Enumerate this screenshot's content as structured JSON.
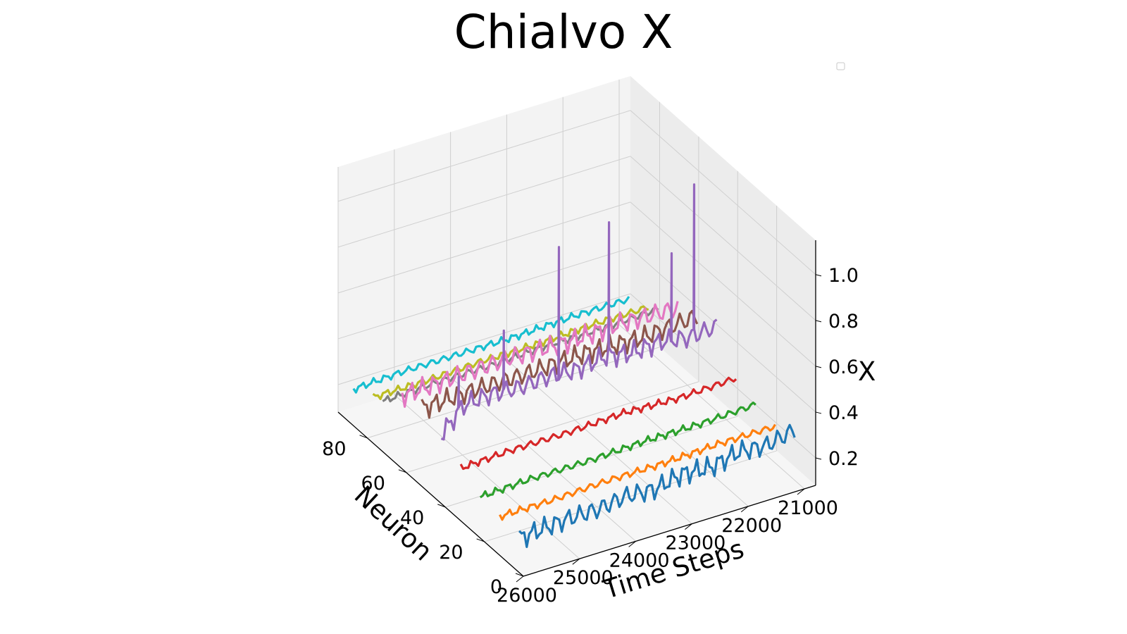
{
  "chart_data": {
    "type": "line",
    "projection": "3d",
    "title": "Chialvo X",
    "xlabel": "Time Steps",
    "ylabel": "Neuron",
    "zlabel": "X",
    "xlim": [
      26000,
      20800
    ],
    "ylim": [
      0,
      95
    ],
    "zlim": [
      0.08,
      1.15
    ],
    "x_ticks": [
      "26000",
      "25000",
      "24000",
      "23000",
      "22000",
      "21000"
    ],
    "y_ticks": [
      "0",
      "20",
      "40",
      "60",
      "80"
    ],
    "z_ticks": [
      "0.2",
      "0.4",
      "0.6",
      "0.8",
      "1.0"
    ],
    "legend": "top-right (empty)",
    "grid": true,
    "series": [
      {
        "neuron": 5,
        "color": "#1f77b4",
        "x": [
          21000,
          21500,
          22000,
          22500,
          23000,
          23500,
          24000,
          24500,
          25000,
          25500,
          25900
        ],
        "y": [
          0.3,
          0.27,
          0.28,
          0.25,
          0.26,
          0.23,
          0.24,
          0.22,
          0.22,
          0.21,
          0.2
        ]
      },
      {
        "neuron": 15,
        "color": "#ff7f0e",
        "x": [
          21000,
          22000,
          23000,
          24000,
          25000,
          25900
        ],
        "y": [
          0.24,
          0.24,
          0.23,
          0.23,
          0.22,
          0.22
        ]
      },
      {
        "neuron": 25,
        "color": "#2ca02c",
        "x": [
          21000,
          22000,
          23000,
          24000,
          25000,
          25900
        ],
        "y": [
          0.26,
          0.25,
          0.25,
          0.24,
          0.24,
          0.23
        ]
      },
      {
        "neuron": 35,
        "color": "#d62728",
        "x": [
          21000,
          22000,
          23000,
          24000,
          25000,
          25900
        ],
        "y": [
          0.3,
          0.29,
          0.3,
          0.29,
          0.29,
          0.28
        ]
      },
      {
        "neuron": 45,
        "color": "#9467bd",
        "x": [
          21000,
          21500,
          22000,
          22500,
          23000,
          23500,
          24000,
          24500,
          25000,
          25500,
          25900
        ],
        "y": [
          0.45,
          0.44,
          0.46,
          0.45,
          0.47,
          0.45,
          0.46,
          0.45,
          0.46,
          0.45,
          0.35
        ],
        "spikes": [
          [
            21400,
            1.1
          ],
          [
            21800,
            0.83
          ],
          [
            22900,
            1.05
          ],
          [
            23800,
            1.01
          ],
          [
            24800,
            0.72
          ],
          [
            25600,
            0.58
          ]
        ]
      },
      {
        "neuron": 55,
        "color": "#8c564b",
        "x": [
          21000,
          22000,
          23000,
          24000,
          25000,
          25900
        ],
        "y": [
          0.42,
          0.4,
          0.41,
          0.4,
          0.4,
          0.39
        ]
      },
      {
        "neuron": 65,
        "color": "#e377c2",
        "x": [
          21000,
          22000,
          23000,
          24000,
          25000,
          25900
        ],
        "y": [
          0.38,
          0.39,
          0.38,
          0.39,
          0.38,
          0.37
        ]
      },
      {
        "neuron": 75,
        "color": "#7f7f7f",
        "x": [
          21000,
          22000,
          23000,
          24000,
          25000,
          25900
        ],
        "y": [
          0.3,
          0.29,
          0.29,
          0.28,
          0.28,
          0.27
        ]
      },
      {
        "neuron": 80,
        "color": "#bcbd22",
        "x": [
          21000,
          22000,
          23000,
          24000,
          25000,
          25900
        ],
        "y": [
          0.27,
          0.27,
          0.26,
          0.26,
          0.25,
          0.25
        ]
      },
      {
        "neuron": 90,
        "color": "#17becf",
        "x": [
          21000,
          22000,
          23000,
          24000,
          25000,
          25900
        ],
        "y": [
          0.23,
          0.23,
          0.22,
          0.22,
          0.22,
          0.21
        ]
      }
    ]
  }
}
